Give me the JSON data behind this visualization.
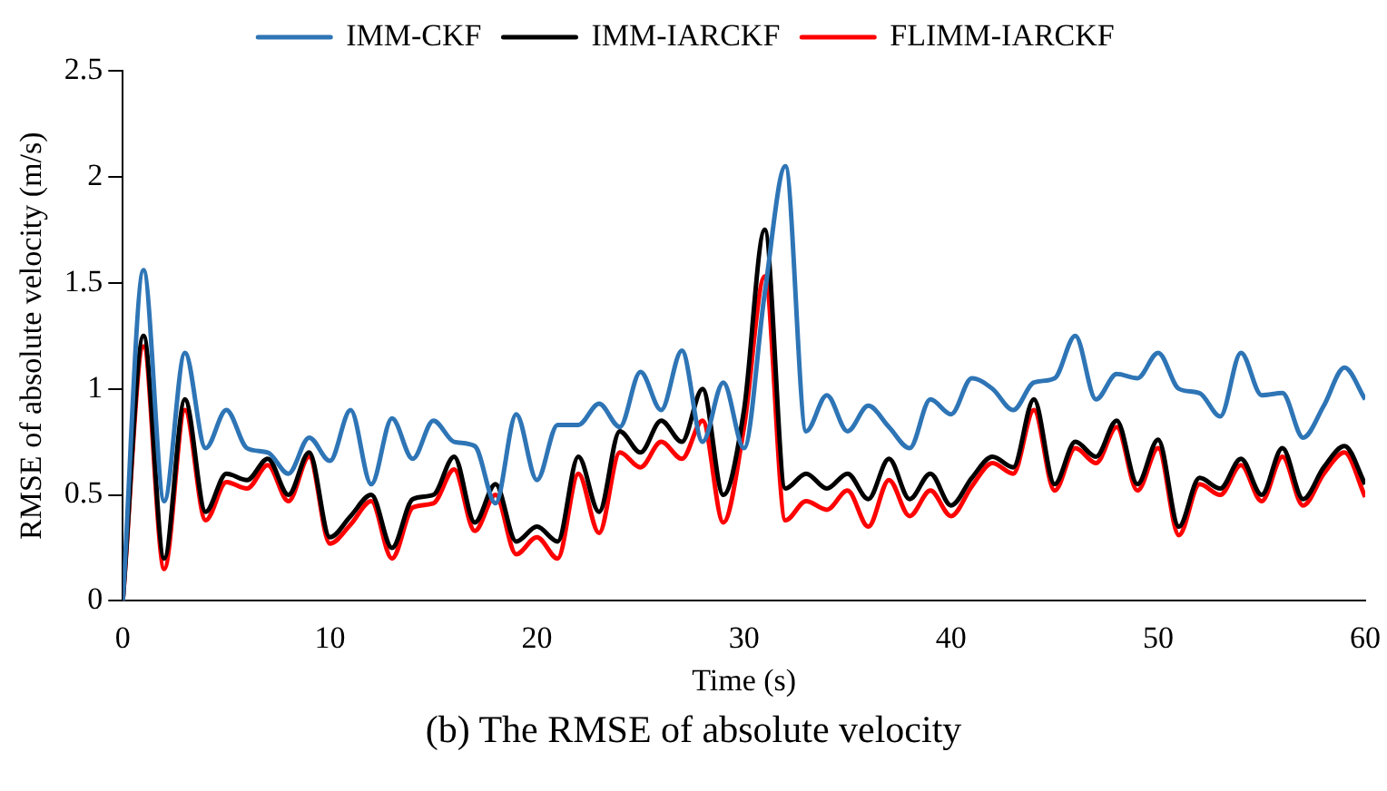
{
  "chart_data": {
    "type": "line",
    "xlabel": "Time (s)",
    "ylabel": "RMSE of absolute velocity (m/s)",
    "annotations": [
      "(b) The RMSE of absolute velocity"
    ],
    "x": [
      0,
      1,
      2,
      3,
      4,
      5,
      6,
      7,
      8,
      9,
      10,
      11,
      12,
      13,
      14,
      15,
      16,
      17,
      18,
      19,
      20,
      21,
      22,
      23,
      24,
      25,
      26,
      27,
      28,
      29,
      30,
      31,
      32,
      33,
      34,
      35,
      36,
      37,
      38,
      39,
      40,
      41,
      42,
      43,
      44,
      45,
      46,
      47,
      48,
      49,
      50,
      51,
      52,
      53,
      54,
      55,
      56,
      57,
      58,
      59,
      60
    ],
    "series": [
      {
        "name": "IMM-CKF",
        "color": "#2e75b6",
        "values": [
          0,
          1.56,
          0.47,
          1.17,
          0.72,
          0.9,
          0.72,
          0.7,
          0.6,
          0.77,
          0.66,
          0.9,
          0.55,
          0.86,
          0.67,
          0.85,
          0.75,
          0.73,
          0.46,
          0.88,
          0.57,
          0.83,
          0.83,
          0.93,
          0.82,
          1.08,
          0.9,
          1.18,
          0.75,
          1.03,
          0.72,
          1.45,
          2.05,
          0.8,
          0.97,
          0.8,
          0.92,
          0.82,
          0.72,
          0.95,
          0.88,
          1.05,
          1.0,
          0.9,
          1.03,
          1.05,
          1.25,
          0.95,
          1.07,
          1.05,
          1.17,
          1.0,
          0.98,
          0.87,
          1.17,
          0.97,
          0.98,
          0.77,
          0.92,
          1.1,
          0.95
        ]
      },
      {
        "name": "IMM-IARCKF",
        "color": "#000000",
        "values": [
          0,
          1.25,
          0.2,
          0.95,
          0.42,
          0.6,
          0.57,
          0.67,
          0.5,
          0.7,
          0.3,
          0.4,
          0.5,
          0.25,
          0.48,
          0.5,
          0.68,
          0.37,
          0.55,
          0.28,
          0.35,
          0.28,
          0.68,
          0.42,
          0.8,
          0.7,
          0.85,
          0.75,
          1.0,
          0.5,
          0.9,
          1.75,
          0.53,
          0.6,
          0.53,
          0.6,
          0.48,
          0.67,
          0.48,
          0.6,
          0.45,
          0.58,
          0.68,
          0.63,
          0.95,
          0.55,
          0.75,
          0.68,
          0.85,
          0.55,
          0.76,
          0.35,
          0.58,
          0.53,
          0.67,
          0.5,
          0.72,
          0.48,
          0.63,
          0.73,
          0.55
        ]
      },
      {
        "name": "FLIMM-IARCKF",
        "color": "#ff0000",
        "values": [
          0,
          1.2,
          0.15,
          0.9,
          0.38,
          0.56,
          0.53,
          0.64,
          0.47,
          0.68,
          0.27,
          0.36,
          0.47,
          0.2,
          0.44,
          0.46,
          0.62,
          0.33,
          0.5,
          0.22,
          0.3,
          0.2,
          0.6,
          0.32,
          0.7,
          0.63,
          0.75,
          0.67,
          0.85,
          0.37,
          0.82,
          1.53,
          0.38,
          0.47,
          0.43,
          0.52,
          0.35,
          0.57,
          0.4,
          0.52,
          0.4,
          0.54,
          0.65,
          0.6,
          0.9,
          0.52,
          0.72,
          0.65,
          0.82,
          0.52,
          0.72,
          0.31,
          0.55,
          0.5,
          0.64,
          0.47,
          0.68,
          0.45,
          0.6,
          0.7,
          0.49
        ]
      }
    ],
    "xlim": [
      0,
      60
    ],
    "xticks": [
      0,
      10,
      20,
      30,
      40,
      50,
      60
    ],
    "ylim": [
      0,
      2.5
    ],
    "yticks": [
      0,
      0.5,
      1,
      1.5,
      2,
      2.5
    ],
    "grid": false,
    "legend": "top",
    "marker": "none",
    "line_style": "solid"
  }
}
